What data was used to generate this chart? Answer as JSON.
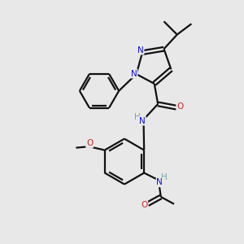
{
  "bg_color": "#e8e8e8",
  "atom_color_N": "#1010cc",
  "atom_color_O": "#cc2222",
  "atom_color_H": "#6fa8a8",
  "line_color": "#111111",
  "line_width": 1.6,
  "figsize": [
    3.0,
    3.0
  ],
  "dpi": 100,
  "xlim": [
    0,
    10
  ],
  "ylim": [
    0,
    10
  ]
}
